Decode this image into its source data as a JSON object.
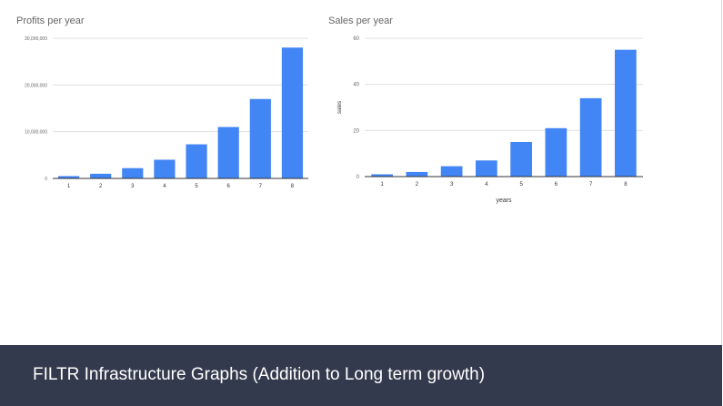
{
  "slide": {
    "footer_title": "FILTR Infrastructure Graphs (Addition to Long term growth)"
  },
  "colors": {
    "bar": "#4285f4",
    "gridline": "#e0e0e0",
    "baseline": "#333333",
    "text": "#666666",
    "footer_background": "#343a4d",
    "footer_text": "#ffffff"
  },
  "chart_data": [
    {
      "type": "bar",
      "title": "Profits per year",
      "xlabel": "",
      "ylabel": "",
      "categories": [
        "1",
        "2",
        "3",
        "4",
        "5",
        "6",
        "7",
        "8"
      ],
      "values": [
        500000,
        1000000,
        2200000,
        4000000,
        7300000,
        11000000,
        17000000,
        28000000
      ],
      "ylim": [
        0,
        30000000
      ],
      "yticks": [
        0,
        10000000,
        20000000,
        30000000
      ],
      "ytick_labels": [
        "0",
        "10,000,000",
        "20,000,000",
        "30,000,000"
      ],
      "grid": true,
      "legend": "none"
    },
    {
      "type": "bar",
      "title": "Sales per year",
      "xlabel": "years",
      "ylabel": "sales",
      "categories": [
        "1",
        "2",
        "3",
        "4",
        "5",
        "6",
        "7",
        "8"
      ],
      "values": [
        1,
        2,
        4.5,
        7,
        15,
        21,
        34,
        55
      ],
      "ylim": [
        0,
        60
      ],
      "yticks": [
        0,
        20,
        40,
        60
      ],
      "ytick_labels": [
        "0",
        "20",
        "40",
        "60"
      ],
      "grid": true,
      "legend": "none"
    }
  ]
}
